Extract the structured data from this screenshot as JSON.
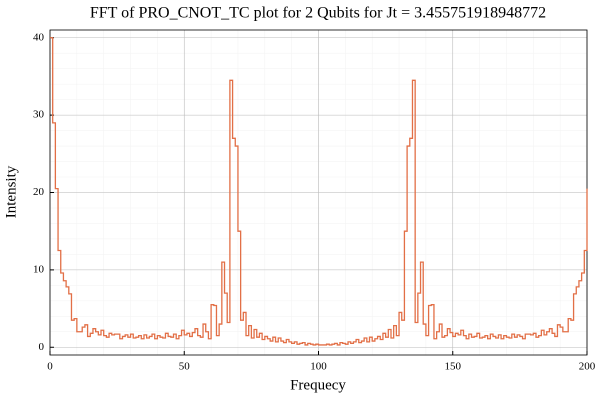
{
  "chart_data": {
    "type": "step",
    "title": "FFT of PRO_CNOT_TC plot for 2 Qubits for Jt = 3.455751918948772",
    "x_label": "Frequecy",
    "y_label": "Intensity",
    "xlim": [
      0,
      200
    ],
    "ylim": [
      -1,
      41
    ],
    "xticks": [
      0,
      50,
      100,
      150,
      200
    ],
    "yticks": [
      0,
      10,
      20,
      30,
      40
    ],
    "grid": true,
    "minor_grid": true,
    "color": "#e26f46",
    "x": [
      0,
      1,
      2,
      3,
      4,
      5,
      6,
      7,
      8,
      9,
      10,
      11,
      12,
      13,
      14,
      15,
      16,
      17,
      18,
      19,
      20,
      21,
      22,
      23,
      24,
      25,
      26,
      27,
      28,
      29,
      30,
      31,
      32,
      33,
      34,
      35,
      36,
      37,
      38,
      39,
      40,
      41,
      42,
      43,
      44,
      45,
      46,
      47,
      48,
      49,
      50,
      51,
      52,
      53,
      54,
      55,
      56,
      57,
      58,
      59,
      60,
      61,
      62,
      63,
      64,
      65,
      66,
      67,
      68,
      69,
      70,
      71,
      72,
      73,
      74,
      75,
      76,
      77,
      78,
      79,
      80,
      81,
      82,
      83,
      84,
      85,
      86,
      87,
      88,
      89,
      90,
      91,
      92,
      93,
      94,
      95,
      96,
      97,
      98,
      99,
      100,
      101,
      102,
      103,
      104,
      105,
      106,
      107,
      108,
      109,
      110,
      111,
      112,
      113,
      114,
      115,
      116,
      117,
      118,
      119,
      120,
      121,
      122,
      123,
      124,
      125,
      126,
      127,
      128,
      129,
      130,
      131,
      132,
      133,
      134,
      135,
      136,
      137,
      138,
      139,
      140,
      141,
      142,
      143,
      144,
      145,
      146,
      147,
      148,
      149,
      150,
      151,
      152,
      153,
      154,
      155,
      156,
      157,
      158,
      159,
      160,
      161,
      162,
      163,
      164,
      165,
      166,
      167,
      168,
      169,
      170,
      171,
      172,
      173,
      174,
      175,
      176,
      177,
      178,
      179,
      180,
      181,
      182,
      183,
      184,
      185,
      186,
      187,
      188,
      189,
      190,
      191,
      192,
      193,
      194,
      195,
      196,
      197,
      198,
      199,
      200
    ],
    "values": [
      40,
      29,
      20.5,
      12.5,
      9.6,
      8.6,
      7.8,
      6.9,
      3.5,
      3.7,
      2.0,
      2.0,
      2.6,
      2.9,
      1.4,
      1.8,
      2.4,
      2.0,
      1.6,
      2.2,
      1.5,
      1.3,
      1.8,
      1.6,
      1.7,
      1.7,
      1.1,
      1.4,
      1.6,
      1.3,
      1.7,
      1.2,
      1.3,
      1.5,
      1.1,
      1.6,
      1.2,
      1.4,
      1.7,
      1.1,
      1.5,
      1.3,
      1.2,
      1.8,
      1.4,
      1.3,
      1.7,
      1.1,
      1.5,
      2.2,
      1.6,
      1.8,
      1.4,
      1.9,
      2.4,
      1.5,
      1.3,
      3.0,
      2.0,
      1.1,
      5.5,
      5.4,
      1.5,
      3.0,
      11.0,
      7.0,
      3.2,
      34.5,
      27.0,
      26.0,
      15.0,
      3.5,
      4.5,
      1.5,
      2.8,
      1.2,
      2.3,
      1.3,
      1.8,
      1.0,
      1.4,
      1.1,
      0.8,
      1.3,
      0.7,
      1.2,
      0.8,
      0.6,
      1.0,
      0.7,
      0.5,
      0.7,
      0.4,
      0.5,
      0.6,
      0.3,
      0.5,
      0.4,
      0.3,
      0.4,
      0.3,
      0.3,
      0.3,
      0.4,
      0.3,
      0.4,
      0.5,
      0.3,
      0.6,
      0.5,
      0.4,
      0.7,
      0.5,
      0.7,
      1.0,
      0.6,
      0.8,
      1.2,
      0.7,
      1.3,
      0.8,
      1.1,
      1.4,
      1.0,
      1.8,
      1.3,
      2.3,
      1.2,
      2.8,
      1.5,
      4.5,
      3.5,
      15.0,
      26.0,
      27.0,
      34.5,
      3.2,
      7.0,
      11.0,
      3.0,
      1.5,
      5.4,
      5.5,
      1.1,
      2.0,
      3.0,
      1.3,
      1.5,
      2.4,
      1.9,
      1.4,
      1.8,
      1.6,
      2.2,
      1.5,
      1.1,
      1.7,
      1.3,
      1.4,
      1.8,
      1.2,
      1.3,
      1.5,
      1.1,
      1.7,
      1.4,
      1.2,
      1.6,
      1.1,
      1.5,
      1.3,
      1.2,
      1.7,
      1.3,
      1.6,
      1.4,
      1.1,
      1.7,
      1.7,
      1.6,
      1.8,
      1.3,
      1.5,
      2.2,
      1.6,
      2.0,
      2.4,
      1.8,
      1.4,
      2.9,
      2.6,
      2.0,
      2.0,
      3.7,
      3.5,
      6.9,
      7.8,
      8.6,
      9.6,
      12.5,
      20.5
    ]
  }
}
